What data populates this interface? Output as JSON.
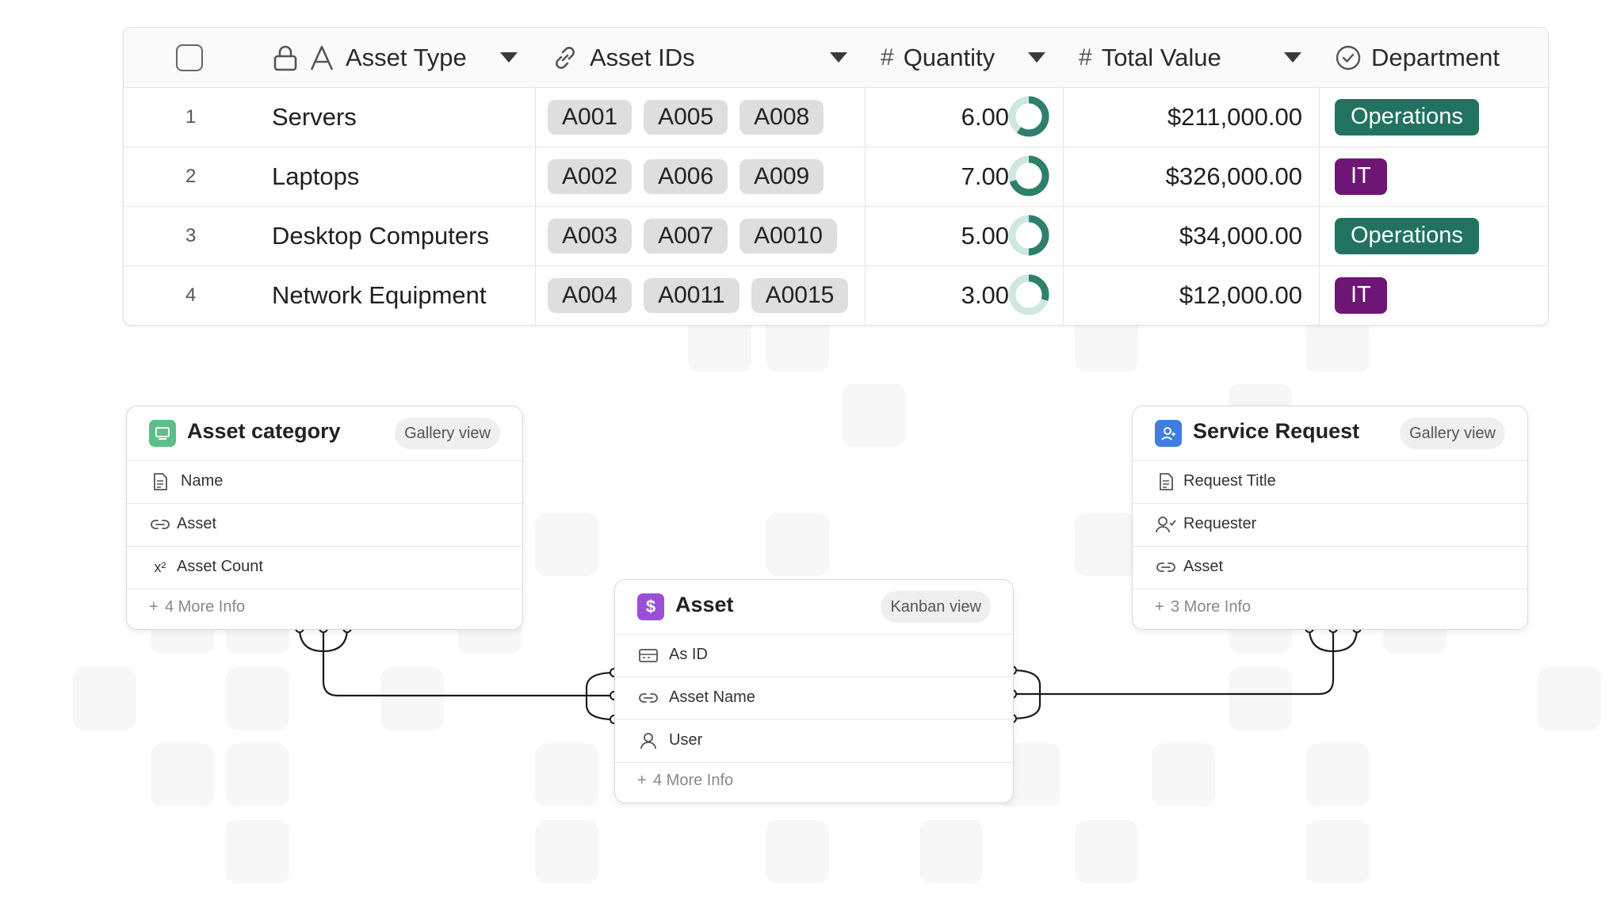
{
  "table": {
    "columns": [
      {
        "label": "Asset Type",
        "icon": "text-icon"
      },
      {
        "label": "Asset IDs",
        "icon": "link-icon"
      },
      {
        "label": "Quantity",
        "icon": "number-icon"
      },
      {
        "label": "Total Value",
        "icon": "number-icon"
      },
      {
        "label": "Department",
        "icon": "check-circle-icon"
      }
    ],
    "rows": [
      {
        "num": "1",
        "type": "Servers",
        "ids": [
          "A001",
          "A005",
          "A008"
        ],
        "qty": "6.00",
        "qty_fraction": 0.6,
        "value": "$211,000.00",
        "dept": "Operations",
        "dept_color": "#21735f"
      },
      {
        "num": "2",
        "type": "Laptops",
        "ids": [
          "A002",
          "A006",
          "A009"
        ],
        "qty": "7.00",
        "qty_fraction": 0.7,
        "value": "$326,000.00",
        "dept": "IT",
        "dept_color": "#6d1675"
      },
      {
        "num": "3",
        "type": "Desktop Computers",
        "ids": [
          "A003",
          "A007",
          "A0010"
        ],
        "qty": "5.00",
        "qty_fraction": 0.5,
        "value": "$34,000.00",
        "dept": "Operations",
        "dept_color": "#21735f"
      },
      {
        "num": "4",
        "type": "Network Equipment",
        "ids": [
          "A004",
          "A0011",
          "A0015"
        ],
        "qty": "3.00",
        "qty_fraction": 0.3,
        "value": "$12,000.00",
        "dept": "IT",
        "dept_color": "#6d1675"
      }
    ]
  },
  "cards": {
    "asset_category": {
      "title": "Asset category",
      "view": "Gallery view",
      "icon_color": "#5cbf8a",
      "fields": [
        {
          "label": "Name",
          "icon": "document-icon"
        },
        {
          "label": "Asset",
          "icon": "link-icon"
        },
        {
          "label": "Asset Count",
          "icon": "formula-icon"
        }
      ],
      "more": "4 More Info"
    },
    "asset": {
      "title": "Asset",
      "view": "Kanban view",
      "icon_color": "#9a4fd6",
      "fields": [
        {
          "label": "As ID",
          "icon": "id-card-icon"
        },
        {
          "label": "Asset Name",
          "icon": "link-icon"
        },
        {
          "label": "User",
          "icon": "user-icon"
        }
      ],
      "more": "4 More Info"
    },
    "service_request": {
      "title": "Service Request",
      "view": "Gallery view",
      "icon_color": "#3d7ee0",
      "fields": [
        {
          "label": "Request Title",
          "icon": "document-icon"
        },
        {
          "label": "Requester",
          "icon": "user-check-icon"
        },
        {
          "label": "Asset",
          "icon": "link-icon"
        }
      ],
      "more": "3 More Info"
    }
  }
}
